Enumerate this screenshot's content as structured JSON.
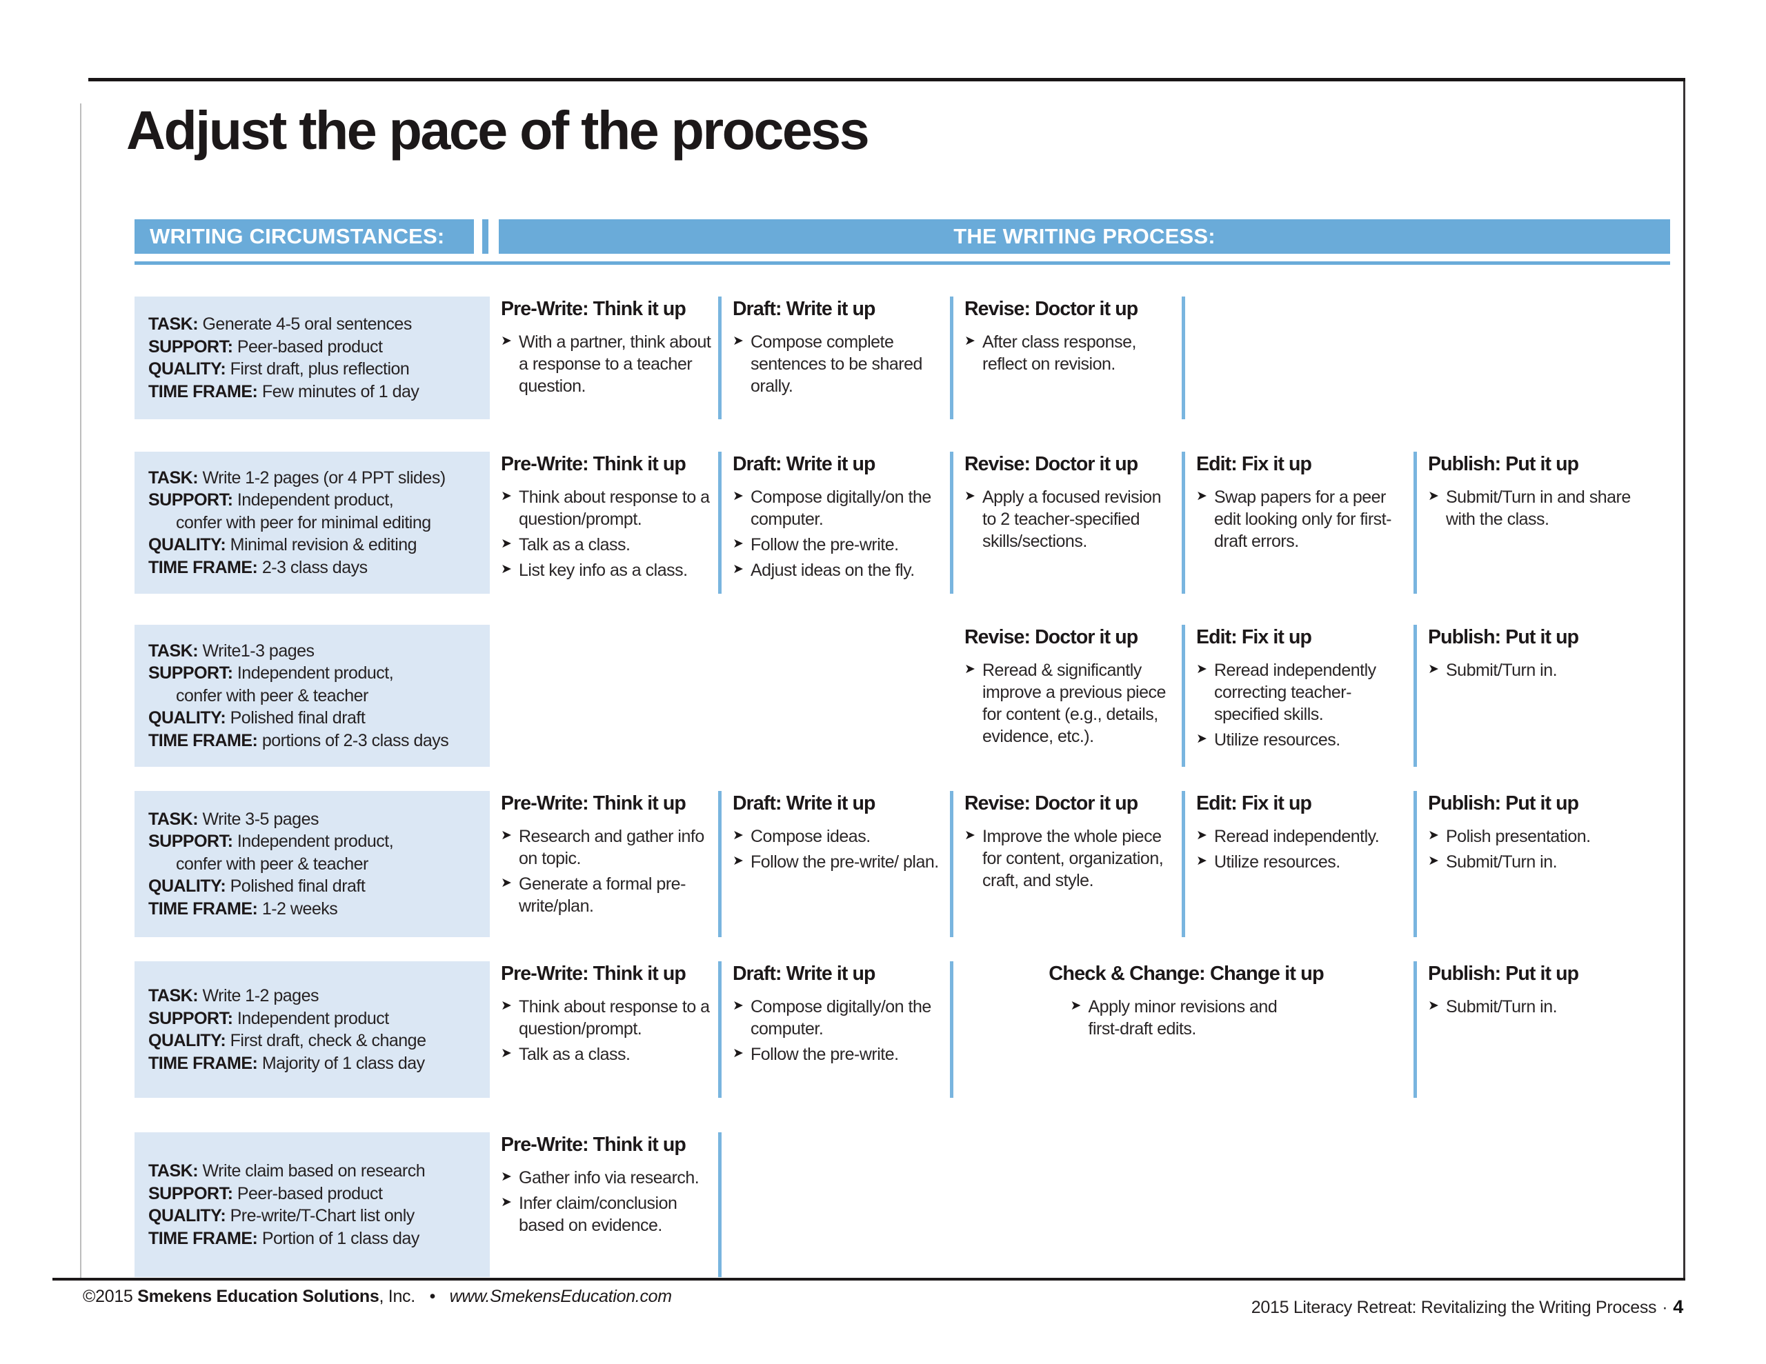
{
  "title": "Adjust the pace of the process",
  "header": {
    "left_label": "WRITING CIRCUMSTANCES:",
    "right_label": "THE WRITING PROCESS:"
  },
  "colors": {
    "header_blue": "#6AABD9",
    "circumstance_box_blue": "#DBE7F4",
    "column_divider_blue": "#79B5DF",
    "text_ink": "#231F20"
  },
  "rows": [
    {
      "circumstances": [
        {
          "label": "TASK:",
          "text": "Generate 4-5 oral sentences",
          "indent": false
        },
        {
          "label": "SUPPORT:",
          "text": "Peer-based product",
          "indent": false
        },
        {
          "label": "QUALITY:",
          "text": "First draft, plus reflection",
          "indent": false
        },
        {
          "label": "TIME FRAME:",
          "text": "Few minutes of 1 day",
          "indent": false
        }
      ],
      "steps": [
        {
          "col": 1,
          "span": 1,
          "title": "Pre-Write: Think it up",
          "bullets": [
            "With a partner, think about a response to a teacher question."
          ]
        },
        {
          "col": 2,
          "span": 1,
          "title": "Draft: Write it up",
          "bullets": [
            "Compose complete sentences to be shared orally."
          ]
        },
        {
          "col": 3,
          "span": 1,
          "title": "Revise: Doctor it up",
          "bullets": [
            "After class response, reflect on revision."
          ]
        }
      ]
    },
    {
      "circumstances": [
        {
          "label": "TASK:",
          "text": "Write 1-2 pages (or 4 PPT slides)",
          "indent": false
        },
        {
          "label": "SUPPORT:",
          "text": "Independent product,",
          "indent": false
        },
        {
          "label": "",
          "text": "confer with peer for minimal editing",
          "indent": true
        },
        {
          "label": "QUALITY:",
          "text": "Minimal revision & editing",
          "indent": false
        },
        {
          "label": "TIME FRAME:",
          "text": "2-3 class days",
          "indent": false
        }
      ],
      "steps": [
        {
          "col": 1,
          "span": 1,
          "title": "Pre-Write: Think it up",
          "bullets": [
            "Think about response to a question/prompt.",
            "Talk as a class.",
            "List key info as a class."
          ]
        },
        {
          "col": 2,
          "span": 1,
          "title": "Draft: Write it up",
          "bullets": [
            "Compose digitally/on the computer.",
            "Follow the pre-write.",
            "Adjust ideas on the fly."
          ]
        },
        {
          "col": 3,
          "span": 1,
          "title": "Revise: Doctor it up",
          "bullets": [
            "Apply a focused revision to 2 teacher-specified skills/sections."
          ]
        },
        {
          "col": 4,
          "span": 1,
          "title": "Edit: Fix it up",
          "bullets": [
            "Swap papers for a peer edit looking only for first-draft errors."
          ]
        },
        {
          "col": 5,
          "span": 1,
          "title": "Publish: Put it up",
          "bullets": [
            "Submit/Turn in and share with the class."
          ]
        }
      ]
    },
    {
      "circumstances": [
        {
          "label": "TASK:",
          "text": "Write1-3 pages",
          "indent": false
        },
        {
          "label": "SUPPORT:",
          "text": "Independent product,",
          "indent": false
        },
        {
          "label": "",
          "text": "confer with peer & teacher",
          "indent": true
        },
        {
          "label": "QUALITY:",
          "text": "Polished final draft",
          "indent": false
        },
        {
          "label": "TIME FRAME:",
          "text": "portions of 2-3 class days",
          "indent": false
        }
      ],
      "steps": [
        {
          "col": 3,
          "span": 1,
          "title": "Revise: Doctor it up",
          "bullets": [
            "Reread & significantly improve a previous piece for content (e.g., details, evidence, etc.)."
          ]
        },
        {
          "col": 4,
          "span": 1,
          "title": "Edit: Fix it up",
          "bullets": [
            "Reread independently correcting teacher-specified skills.",
            "Utilize resources."
          ]
        },
        {
          "col": 5,
          "span": 1,
          "title": "Publish: Put it up",
          "bullets": [
            "Submit/Turn in."
          ]
        }
      ]
    },
    {
      "circumstances": [
        {
          "label": "TASK:",
          "text": "Write 3-5 pages",
          "indent": false
        },
        {
          "label": "SUPPORT:",
          "text": "Independent product,",
          "indent": false
        },
        {
          "label": "",
          "text": "confer with peer & teacher",
          "indent": true
        },
        {
          "label": "QUALITY:",
          "text": "Polished final draft",
          "indent": false
        },
        {
          "label": "TIME FRAME:",
          "text": "1-2 weeks",
          "indent": false
        }
      ],
      "steps": [
        {
          "col": 1,
          "span": 1,
          "title": "Pre-Write: Think it up",
          "bullets": [
            "Research and gather info on topic.",
            "Generate a formal pre-write/plan."
          ]
        },
        {
          "col": 2,
          "span": 1,
          "title": "Draft: Write it up",
          "bullets": [
            "Compose ideas.",
            "Follow the pre-write/ plan."
          ]
        },
        {
          "col": 3,
          "span": 1,
          "title": "Revise: Doctor it up",
          "bullets": [
            "Improve the whole piece for content, organization, craft, and style."
          ]
        },
        {
          "col": 4,
          "span": 1,
          "title": "Edit: Fix it up",
          "bullets": [
            "Reread independently.",
            "Utilize resources."
          ]
        },
        {
          "col": 5,
          "span": 1,
          "title": "Publish: Put it up",
          "bullets": [
            "Polish presentation.",
            "Submit/Turn in."
          ]
        }
      ]
    },
    {
      "circumstances": [
        {
          "label": "TASK:",
          "text": "Write 1-2 pages",
          "indent": false
        },
        {
          "label": "SUPPORT:",
          "text": "Independent product",
          "indent": false
        },
        {
          "label": "QUALITY:",
          "text": "First draft, check & change",
          "indent": false
        },
        {
          "label": "TIME FRAME:",
          "text": "Majority of 1 class day",
          "indent": false
        }
      ],
      "steps": [
        {
          "col": 1,
          "span": 1,
          "title": "Pre-Write: Think it up",
          "bullets": [
            "Think about response to a question/prompt.",
            "Talk as a class."
          ]
        },
        {
          "col": 2,
          "span": 1,
          "title": "Draft: Write it up",
          "bullets": [
            "Compose digitally/on the computer.",
            "Follow the pre-write."
          ]
        },
        {
          "col": 3,
          "span": 2,
          "title": "Check & Change: Change it up",
          "bullets": [
            "Apply minor revisions and first-draft edits."
          ]
        },
        {
          "col": 5,
          "span": 1,
          "title": "Publish: Put it up",
          "bullets": [
            "Submit/Turn in."
          ]
        }
      ]
    },
    {
      "circumstances": [
        {
          "label": "TASK:",
          "text": "Write claim based on research",
          "indent": false
        },
        {
          "label": "SUPPORT:",
          "text": "Peer-based product",
          "indent": false
        },
        {
          "label": "QUALITY:",
          "text": "Pre-write/T-Chart list only",
          "indent": false
        },
        {
          "label": "TIME FRAME:",
          "text": "Portion of 1 class day",
          "indent": false
        }
      ],
      "steps": [
        {
          "col": 1,
          "span": 1,
          "title": "Pre-Write: Think it up",
          "bullets": [
            "Gather info via research.",
            "Infer claim/conclusion based on evidence."
          ]
        }
      ]
    }
  ],
  "footer": {
    "copyright": "©2015",
    "company": "Smekens Education Solutions",
    "company_suffix": ", Inc.",
    "bullet": "•",
    "website": "www.SmekensEducation.com",
    "right_text": "2015 Literacy Retreat: Revitalizing the Writing Process",
    "right_separator": "·",
    "page_number": "4"
  }
}
